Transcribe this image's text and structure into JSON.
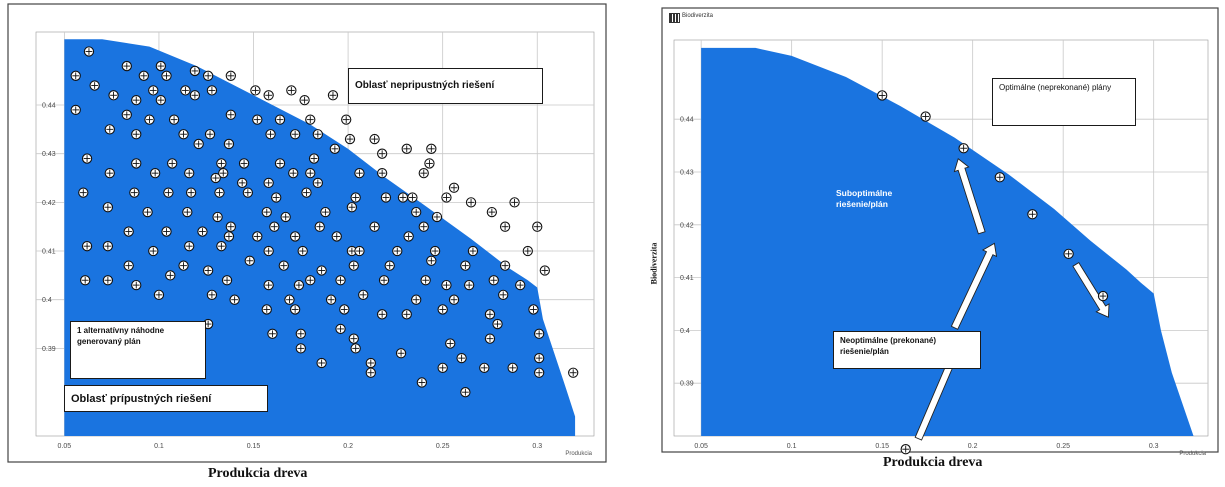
{
  "charts_common": {
    "fill_color": "#1a74e0",
    "grid_color": "#c8c8c8",
    "frame_color": "#444444"
  },
  "chart_data": [
    {
      "type": "scatter",
      "title": "",
      "xlabel": "Produkcia dreva",
      "ylabel": "",
      "corner_xlabel": "Produkcia",
      "xlim": [
        0.035,
        0.33
      ],
      "ylim": [
        0.372,
        0.455
      ],
      "xticks": [
        "0.05",
        "0.1",
        "0.15",
        "0.2",
        "0.25",
        "0.3"
      ],
      "yticks": [
        "0.44",
        "0.43",
        "0.42",
        "0.41",
        "0.4",
        "0.39"
      ],
      "frontier": [
        [
          0.05,
          0.4535
        ],
        [
          0.07,
          0.4535
        ],
        [
          0.095,
          0.452
        ],
        [
          0.12,
          0.448
        ],
        [
          0.15,
          0.442
        ],
        [
          0.18,
          0.436
        ],
        [
          0.2,
          0.431
        ],
        [
          0.22,
          0.425
        ],
        [
          0.24,
          0.4195
        ],
        [
          0.265,
          0.4125
        ],
        [
          0.285,
          0.4065
        ],
        [
          0.295,
          0.404
        ],
        [
          0.3,
          0.4025
        ],
        [
          0.303,
          0.396
        ],
        [
          0.309,
          0.389
        ],
        [
          0.315,
          0.382
        ],
        [
          0.32,
          0.376
        ]
      ],
      "points": [
        [
          0.063,
          0.451
        ],
        [
          0.083,
          0.448
        ],
        [
          0.101,
          0.448
        ],
        [
          0.119,
          0.447
        ],
        [
          0.092,
          0.446
        ],
        [
          0.104,
          0.446
        ],
        [
          0.126,
          0.446
        ],
        [
          0.138,
          0.446
        ],
        [
          0.056,
          0.446
        ],
        [
          0.066,
          0.444
        ],
        [
          0.076,
          0.442
        ],
        [
          0.097,
          0.443
        ],
        [
          0.114,
          0.443
        ],
        [
          0.128,
          0.443
        ],
        [
          0.151,
          0.443
        ],
        [
          0.17,
          0.443
        ],
        [
          0.088,
          0.441
        ],
        [
          0.101,
          0.441
        ],
        [
          0.119,
          0.442
        ],
        [
          0.158,
          0.442
        ],
        [
          0.177,
          0.441
        ],
        [
          0.192,
          0.442
        ],
        [
          0.056,
          0.439
        ],
        [
          0.083,
          0.438
        ],
        [
          0.095,
          0.437
        ],
        [
          0.108,
          0.437
        ],
        [
          0.138,
          0.438
        ],
        [
          0.152,
          0.437
        ],
        [
          0.164,
          0.437
        ],
        [
          0.18,
          0.437
        ],
        [
          0.199,
          0.437
        ],
        [
          0.074,
          0.435
        ],
        [
          0.088,
          0.434
        ],
        [
          0.113,
          0.434
        ],
        [
          0.127,
          0.434
        ],
        [
          0.159,
          0.434
        ],
        [
          0.172,
          0.434
        ],
        [
          0.184,
          0.434
        ],
        [
          0.201,
          0.433
        ],
        [
          0.214,
          0.433
        ],
        [
          0.121,
          0.432
        ],
        [
          0.137,
          0.432
        ],
        [
          0.193,
          0.431
        ],
        [
          0.218,
          0.43
        ],
        [
          0.231,
          0.431
        ],
        [
          0.244,
          0.431
        ],
        [
          0.062,
          0.429
        ],
        [
          0.088,
          0.428
        ],
        [
          0.107,
          0.428
        ],
        [
          0.133,
          0.428
        ],
        [
          0.145,
          0.428
        ],
        [
          0.164,
          0.428
        ],
        [
          0.182,
          0.429
        ],
        [
          0.243,
          0.428
        ],
        [
          0.074,
          0.426
        ],
        [
          0.098,
          0.426
        ],
        [
          0.116,
          0.426
        ],
        [
          0.134,
          0.426
        ],
        [
          0.171,
          0.426
        ],
        [
          0.18,
          0.426
        ],
        [
          0.206,
          0.426
        ],
        [
          0.218,
          0.426
        ],
        [
          0.24,
          0.426
        ],
        [
          0.256,
          0.423
        ],
        [
          0.13,
          0.425
        ],
        [
          0.144,
          0.424
        ],
        [
          0.158,
          0.424
        ],
        [
          0.184,
          0.424
        ],
        [
          0.06,
          0.422
        ],
        [
          0.087,
          0.422
        ],
        [
          0.105,
          0.422
        ],
        [
          0.117,
          0.422
        ],
        [
          0.132,
          0.422
        ],
        [
          0.147,
          0.422
        ],
        [
          0.162,
          0.421
        ],
        [
          0.178,
          0.422
        ],
        [
          0.204,
          0.421
        ],
        [
          0.22,
          0.421
        ],
        [
          0.229,
          0.421
        ],
        [
          0.234,
          0.421
        ],
        [
          0.252,
          0.421
        ],
        [
          0.265,
          0.42
        ],
        [
          0.288,
          0.42
        ],
        [
          0.073,
          0.419
        ],
        [
          0.094,
          0.418
        ],
        [
          0.115,
          0.418
        ],
        [
          0.131,
          0.417
        ],
        [
          0.157,
          0.418
        ],
        [
          0.167,
          0.417
        ],
        [
          0.188,
          0.418
        ],
        [
          0.202,
          0.419
        ],
        [
          0.236,
          0.418
        ],
        [
          0.247,
          0.417
        ],
        [
          0.276,
          0.418
        ],
        [
          0.138,
          0.415
        ],
        [
          0.161,
          0.415
        ],
        [
          0.185,
          0.415
        ],
        [
          0.214,
          0.415
        ],
        [
          0.24,
          0.415
        ],
        [
          0.283,
          0.415
        ],
        [
          0.3,
          0.415
        ],
        [
          0.084,
          0.414
        ],
        [
          0.104,
          0.414
        ],
        [
          0.123,
          0.414
        ],
        [
          0.137,
          0.413
        ],
        [
          0.152,
          0.413
        ],
        [
          0.172,
          0.413
        ],
        [
          0.194,
          0.413
        ],
        [
          0.232,
          0.413
        ],
        [
          0.062,
          0.411
        ],
        [
          0.073,
          0.411
        ],
        [
          0.097,
          0.41
        ],
        [
          0.116,
          0.411
        ],
        [
          0.133,
          0.411
        ],
        [
          0.158,
          0.41
        ],
        [
          0.176,
          0.41
        ],
        [
          0.202,
          0.41
        ],
        [
          0.206,
          0.41
        ],
        [
          0.226,
          0.41
        ],
        [
          0.246,
          0.41
        ],
        [
          0.266,
          0.41
        ],
        [
          0.295,
          0.41
        ],
        [
          0.148,
          0.408
        ],
        [
          0.084,
          0.407
        ],
        [
          0.113,
          0.407
        ],
        [
          0.126,
          0.406
        ],
        [
          0.166,
          0.407
        ],
        [
          0.186,
          0.406
        ],
        [
          0.203,
          0.407
        ],
        [
          0.222,
          0.407
        ],
        [
          0.244,
          0.408
        ],
        [
          0.262,
          0.407
        ],
        [
          0.283,
          0.407
        ],
        [
          0.304,
          0.406
        ],
        [
          0.061,
          0.404
        ],
        [
          0.073,
          0.404
        ],
        [
          0.088,
          0.403
        ],
        [
          0.106,
          0.405
        ],
        [
          0.136,
          0.404
        ],
        [
          0.158,
          0.403
        ],
        [
          0.174,
          0.403
        ],
        [
          0.18,
          0.404
        ],
        [
          0.196,
          0.404
        ],
        [
          0.219,
          0.404
        ],
        [
          0.241,
          0.404
        ],
        [
          0.252,
          0.403
        ],
        [
          0.264,
          0.403
        ],
        [
          0.277,
          0.404
        ],
        [
          0.291,
          0.403
        ],
        [
          0.1,
          0.401
        ],
        [
          0.128,
          0.401
        ],
        [
          0.14,
          0.4
        ],
        [
          0.169,
          0.4
        ],
        [
          0.191,
          0.4
        ],
        [
          0.208,
          0.401
        ],
        [
          0.236,
          0.4
        ],
        [
          0.256,
          0.4
        ],
        [
          0.282,
          0.401
        ],
        [
          0.157,
          0.398
        ],
        [
          0.172,
          0.398
        ],
        [
          0.198,
          0.398
        ],
        [
          0.218,
          0.397
        ],
        [
          0.231,
          0.397
        ],
        [
          0.25,
          0.398
        ],
        [
          0.275,
          0.397
        ],
        [
          0.298,
          0.398
        ],
        [
          0.126,
          0.395
        ],
        [
          0.196,
          0.394
        ],
        [
          0.279,
          0.395
        ],
        [
          0.16,
          0.393
        ],
        [
          0.175,
          0.393
        ],
        [
          0.203,
          0.392
        ],
        [
          0.254,
          0.391
        ],
        [
          0.275,
          0.392
        ],
        [
          0.301,
          0.393
        ],
        [
          0.175,
          0.39
        ],
        [
          0.204,
          0.39
        ],
        [
          0.228,
          0.389
        ],
        [
          0.26,
          0.388
        ],
        [
          0.301,
          0.388
        ],
        [
          0.186,
          0.387
        ],
        [
          0.212,
          0.387
        ],
        [
          0.25,
          0.386
        ],
        [
          0.272,
          0.386
        ],
        [
          0.287,
          0.386
        ],
        [
          0.301,
          0.385
        ],
        [
          0.319,
          0.385
        ],
        [
          0.113,
          0.389
        ],
        [
          0.096,
          0.386
        ],
        [
          0.239,
          0.383
        ],
        [
          0.212,
          0.385
        ],
        [
          0.262,
          0.381
        ]
      ],
      "annotations": [
        {
          "text": "Oblasť nepripustných riešení"
        },
        {
          "text": "1 alternatívny náhodne generovaný plán"
        },
        {
          "text": "Oblasť prípustných riešení"
        }
      ]
    },
    {
      "type": "scatter",
      "title": "",
      "window_title": "Biodiverzita",
      "xlabel": "Produkcia dreva",
      "ylabel": "Biodiverzita",
      "corner_xlabel": "Produkcia",
      "xlim": [
        0.035,
        0.33
      ],
      "ylim": [
        0.38,
        0.455
      ],
      "xticks": [
        "0.05",
        "0.1",
        "0.15",
        "0.2",
        "0.25",
        "0.3"
      ],
      "yticks": [
        "0.44",
        "0.43",
        "0.42",
        "0.41",
        "0.4",
        "0.39"
      ],
      "frontier": [
        [
          0.05,
          0.4535
        ],
        [
          0.08,
          0.4535
        ],
        [
          0.1,
          0.452
        ],
        [
          0.13,
          0.448
        ],
        [
          0.16,
          0.4425
        ],
        [
          0.19,
          0.4365
        ],
        [
          0.22,
          0.4295
        ],
        [
          0.245,
          0.423
        ],
        [
          0.265,
          0.417
        ],
        [
          0.285,
          0.4115
        ],
        [
          0.293,
          0.409
        ],
        [
          0.3,
          0.407
        ],
        [
          0.304,
          0.4
        ],
        [
          0.31,
          0.392
        ],
        [
          0.317,
          0.385
        ],
        [
          0.322,
          0.38
        ]
      ],
      "points": [
        [
          0.15,
          0.4445
        ],
        [
          0.174,
          0.4405
        ],
        [
          0.195,
          0.4345
        ],
        [
          0.215,
          0.429
        ],
        [
          0.233,
          0.422
        ],
        [
          0.253,
          0.4145
        ],
        [
          0.272,
          0.4065
        ],
        [
          0.198,
          0.3975
        ],
        [
          0.163,
          0.3775
        ]
      ],
      "arrows": [
        {
          "from": [
            0.205,
            0.4185
          ],
          "to": [
            0.192,
            0.4325
          ]
        },
        {
          "from": [
            0.19,
            0.4005
          ],
          "to": [
            0.212,
            0.4165
          ]
        },
        {
          "from": [
            0.17,
            0.3795
          ],
          "to": [
            0.19,
            0.3955
          ]
        },
        {
          "from": [
            0.257,
            0.4125
          ],
          "to": [
            0.275,
            0.4025
          ]
        }
      ],
      "annotations": [
        {
          "text": "Optimálne (neprekonané) plány"
        },
        {
          "text": "Suboptimálne riešenie/plán"
        },
        {
          "text": "Neoptimálne (prekonané) riešenie/plán"
        }
      ]
    }
  ]
}
